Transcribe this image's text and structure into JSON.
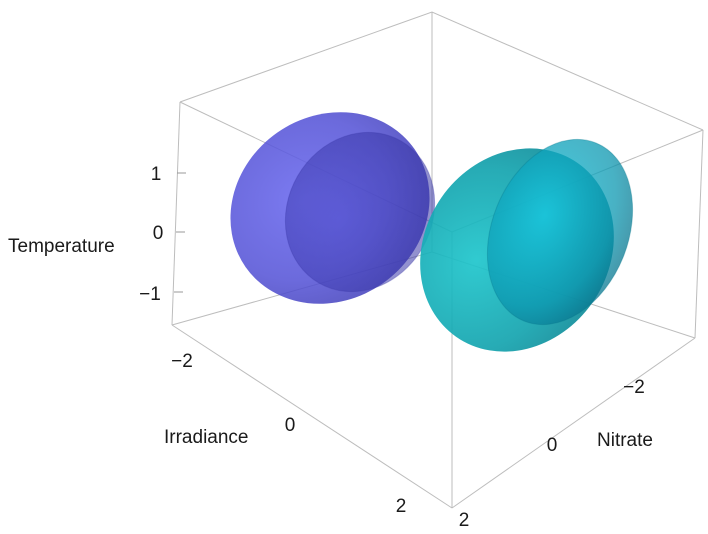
{
  "chart_data": {
    "type": "3d-ellipsoid",
    "title": "",
    "axes": {
      "x": {
        "label": "Irradiance",
        "ticks": [
          "−2",
          "0",
          "2"
        ],
        "range": [
          -2.8,
          2.8
        ]
      },
      "y": {
        "label": "Nitrate",
        "ticks": [
          "−2",
          "0",
          "2"
        ],
        "range": [
          -2.8,
          2.8
        ]
      },
      "z": {
        "label": "Temperature",
        "ticks": [
          "−1",
          "0",
          "1"
        ],
        "range": [
          -1.6,
          1.6
        ]
      }
    },
    "series": [
      {
        "color": "#5a58e0",
        "shape": "ellipsoid",
        "center": {
          "Irradiance": -1.5,
          "Nitrate": -0.6,
          "Temperature": 0.1
        }
      },
      {
        "color": "#0fa6b5",
        "shape": "ellipsoid",
        "center": {
          "Irradiance": 1.2,
          "Nitrate": -1.3,
          "Temperature": 0.0
        }
      }
    ],
    "box": true,
    "grid": false,
    "legend": "none"
  }
}
